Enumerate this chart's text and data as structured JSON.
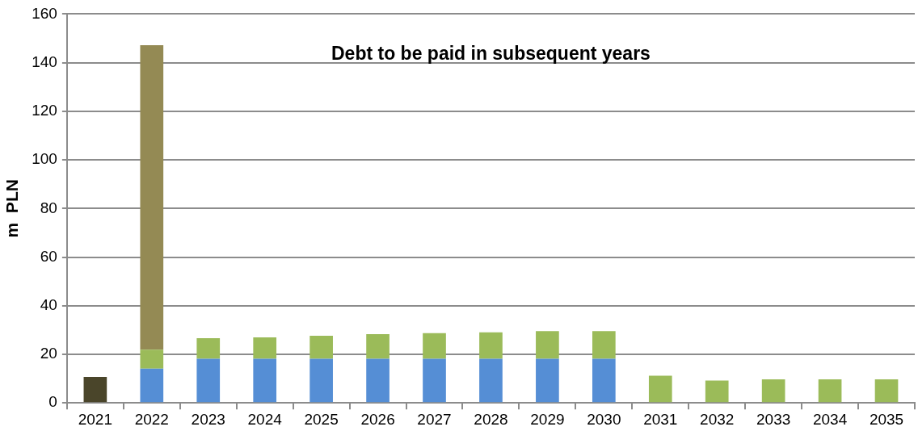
{
  "chart_data": {
    "type": "bar",
    "title": "Debt to be paid in subsequent years",
    "ylabel": "m  PLN",
    "categories": [
      "2021",
      "2022",
      "2023",
      "2024",
      "2025",
      "2026",
      "2027",
      "2028",
      "2029",
      "2030",
      "2031",
      "2032",
      "2033",
      "2034",
      "2035"
    ],
    "stacked": true,
    "series": [
      {
        "color": "#4a452a",
        "values": [
          10.7,
          null,
          null,
          null,
          null,
          null,
          null,
          null,
          null,
          null,
          null,
          null,
          null,
          null,
          null
        ]
      },
      {
        "color": "#558ed5",
        "values": [
          null,
          14.1,
          18.2,
          18.2,
          18.2,
          18.2,
          18.2,
          18.2,
          18.2,
          18.2,
          null,
          null,
          null,
          null,
          null
        ]
      },
      {
        "color": "#9bbb59",
        "values": [
          null,
          7.8,
          8.4,
          8.8,
          9.4,
          10.1,
          10.5,
          10.8,
          11.3,
          11.3,
          11.2,
          9.2,
          9.7,
          9.7,
          9.7
        ]
      },
      {
        "color": "#948a54",
        "values": [
          null,
          125.3,
          null,
          null,
          null,
          null,
          null,
          null,
          null,
          null,
          null,
          null,
          null,
          null,
          null
        ]
      }
    ],
    "ylim": [
      0,
      160
    ],
    "yticks": [
      0,
      20,
      40,
      60,
      80,
      100,
      120,
      140,
      160
    ],
    "grid": "y",
    "legend": false
  }
}
